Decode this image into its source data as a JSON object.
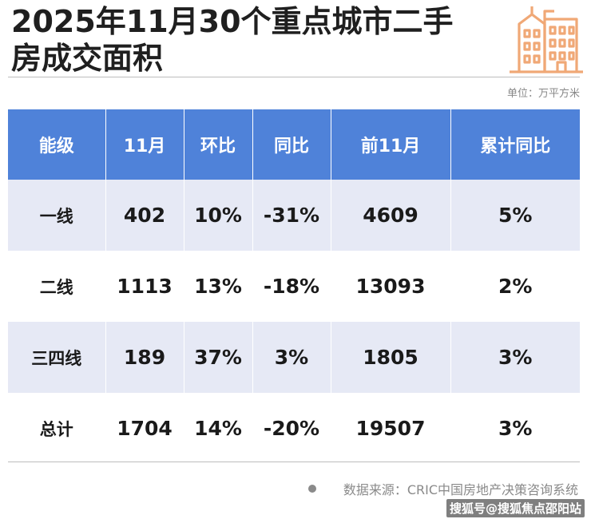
{
  "title": "2025年11月30个重点城市二手房成交面积",
  "unit": "单位：万平方米",
  "icon": "city-buildings-icon",
  "accent_color": "#4f82d9",
  "icon_color": "#f0a876",
  "table": {
    "headers": [
      "能级",
      "11月",
      "环比",
      "同比",
      "前11月",
      "累计同比"
    ],
    "rows": [
      [
        "一线",
        "402",
        "10%",
        "-31%",
        "4609",
        "5%"
      ],
      [
        "二线",
        "1113",
        "13%",
        "-18%",
        "13093",
        "2%"
      ],
      [
        "三四线",
        "189",
        "37%",
        "3%",
        "1805",
        "3%"
      ],
      [
        "总计",
        "1704",
        "14%",
        "-20%",
        "19507",
        "3%"
      ]
    ]
  },
  "source": "数据来源：CRIC中国房地产决策咨询系统",
  "watermark": "搜狐号@搜狐焦点邵阳站"
}
